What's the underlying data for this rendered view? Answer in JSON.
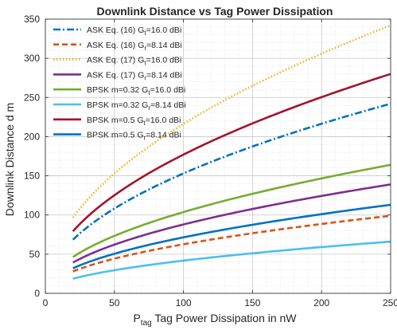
{
  "chart_data": {
    "type": "line",
    "title": "Downlink Distance vs Tag Power Dissipation",
    "xlabel": {
      "main": "P",
      "sub": "tag",
      "rest": " Tag Power Dissipation in nW"
    },
    "ylabel": "Downlink Distance d m",
    "xlim": [
      0,
      250
    ],
    "ylim": [
      0,
      350
    ],
    "xticks": [
      0,
      50,
      100,
      150,
      200,
      250
    ],
    "yticks": [
      0,
      50,
      100,
      150,
      200,
      250,
      300,
      350
    ],
    "grid": true,
    "minor_grid": true,
    "legend_position": "top-left",
    "x": [
      20,
      50,
      100,
      150,
      200,
      250
    ],
    "series": [
      {
        "name": "ASK Eq. (16) G_t=16.0 dBi",
        "name_parts": [
          "ASK Eq. (16) G",
          "t",
          "=16.0 dBi"
        ],
        "color": "#0072BD",
        "style": "dashdot",
        "values": [
          69,
          109,
          154,
          188,
          217,
          242
        ]
      },
      {
        "name": "ASK Eq. (16) G_r=8.14 dBi",
        "name_parts": [
          "ASK Eq. (16) G",
          "r",
          "=8.14 dBi"
        ],
        "color": "#D95319",
        "style": "dash",
        "values": [
          28,
          44,
          62,
          76,
          88,
          99
        ]
      },
      {
        "name": "ASK Eq. (17) G_t=16.0 dBi",
        "name_parts": [
          "ASK Eq. (17) G",
          "t",
          "=16.0 dBi"
        ],
        "color": "#EDB120",
        "style": "dot",
        "values": [
          97,
          153,
          217,
          265,
          306,
          342
        ]
      },
      {
        "name": "ASK Eq. (17) G_r=8.14 dBi",
        "name_parts": [
          "ASK Eq. (17) G",
          "r",
          "=8.14 dBi"
        ],
        "color": "#7E2F8E",
        "style": "solid",
        "values": [
          39,
          62,
          88,
          108,
          124,
          139
        ]
      },
      {
        "name": "BPSK m=0.32 G_t=16.0 dBi",
        "name_parts": [
          "BPSK m=0.32 G",
          "t",
          "=16.0 dBi"
        ],
        "color": "#77AC30",
        "style": "solid",
        "values": [
          46,
          73,
          103,
          127,
          146,
          164
        ]
      },
      {
        "name": "BPSK m=0.32 G_r=8.14 dBi",
        "name_parts": [
          "BPSK m=0.32 G",
          "r",
          "=8.14 dBi"
        ],
        "color": "#4DBEEE",
        "style": "solid",
        "values": [
          19,
          30,
          42,
          51,
          59,
          66
        ]
      },
      {
        "name": "BPSK m=0.5 G_t=16.0 dBi",
        "name_parts": [
          "BPSK m=0.5 G",
          "t",
          "=16.0 dBi"
        ],
        "color": "#A2142F",
        "style": "solid",
        "values": [
          79,
          125,
          177,
          216,
          250,
          280
        ]
      },
      {
        "name": "BPSK m=0.5 G_r=8.14 dBi",
        "name_parts": [
          "BPSK m=0.5 G",
          "r",
          "=8.14 dBi"
        ],
        "color": "#0072BD",
        "style": "solid",
        "values": [
          32,
          50,
          71,
          87,
          101,
          113
        ]
      }
    ]
  }
}
